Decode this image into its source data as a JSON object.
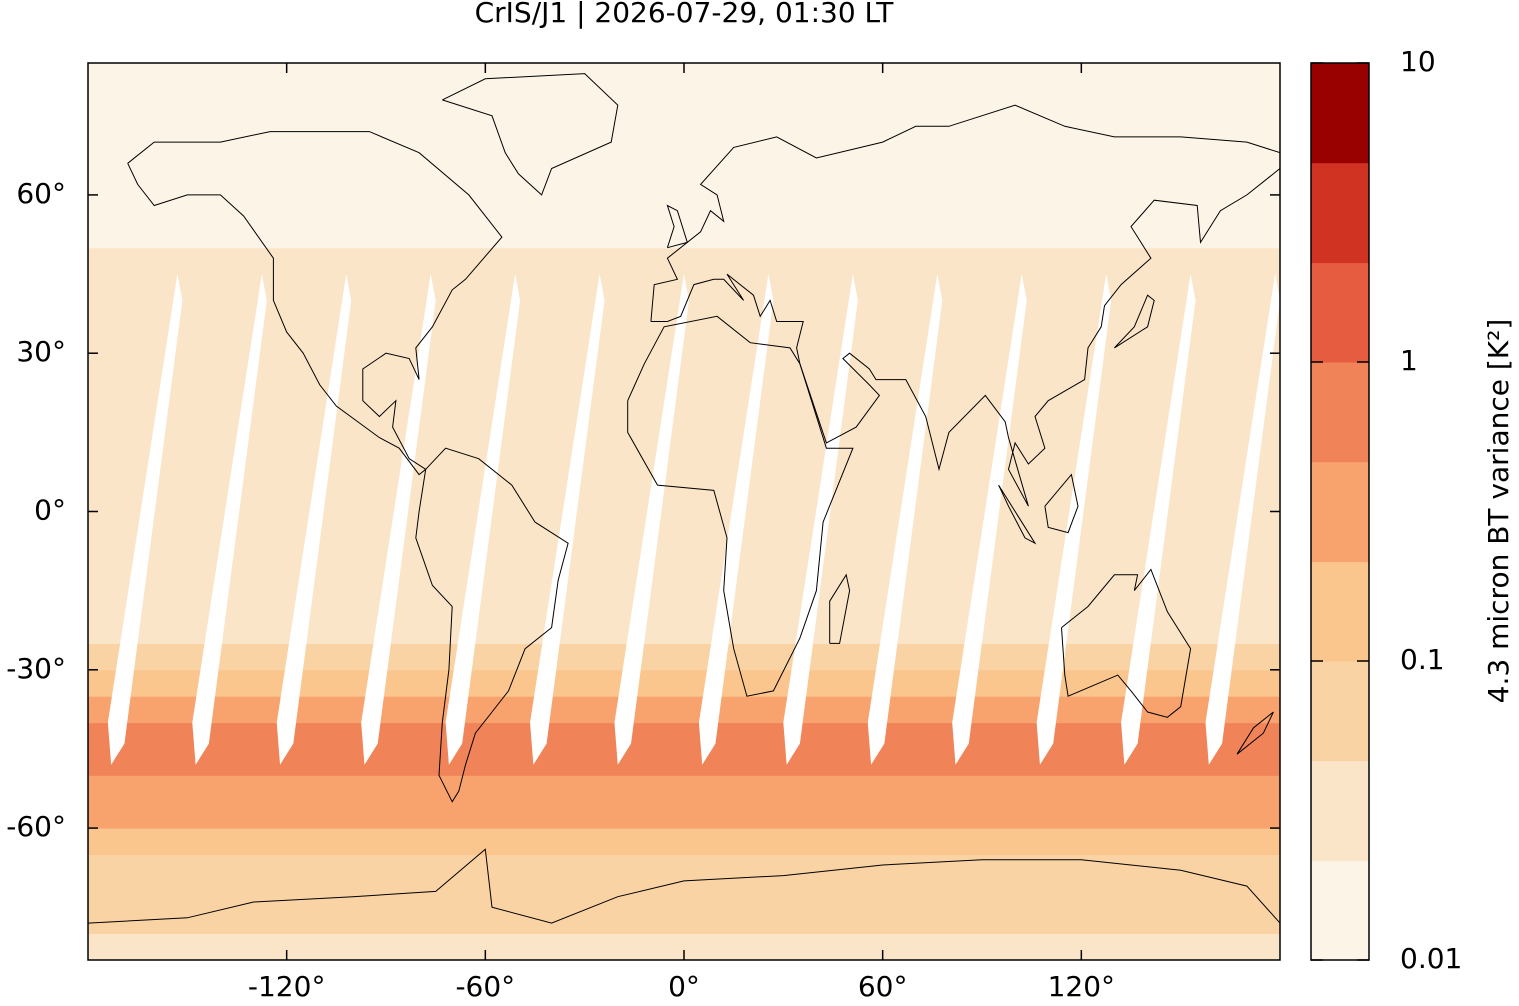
{
  "chart_data": {
    "type": "map",
    "title": "CrIS/J1 | 2026-07-29, 01:30 LT",
    "xlim": [
      -180,
      180
    ],
    "ylim": [
      -85,
      85
    ],
    "xticks": [
      {
        "value": -120,
        "label": "-120°"
      },
      {
        "value": -60,
        "label": "-60°"
      },
      {
        "value": 0,
        "label": "0°"
      },
      {
        "value": 60,
        "label": "60°"
      },
      {
        "value": 120,
        "label": "120°"
      }
    ],
    "yticks": [
      {
        "value": -60,
        "label": "-60°"
      },
      {
        "value": -30,
        "label": "-30°"
      },
      {
        "value": 0,
        "label": "0°"
      },
      {
        "value": 30,
        "label": "30°"
      },
      {
        "value": 60,
        "label": "60°"
      }
    ],
    "lat_edges": [
      -85,
      -80,
      -75,
      -70,
      -65,
      -60,
      -55,
      -50,
      -45,
      -40,
      -35,
      -30,
      -25,
      -20,
      -15,
      -10,
      -5,
      0,
      5,
      10,
      15,
      20,
      25,
      30,
      35,
      40,
      45,
      50,
      55,
      60,
      65,
      70,
      75,
      80,
      85
    ],
    "values": [
      0.04,
      0.05,
      0.06,
      0.08,
      0.15,
      0.25,
      0.4,
      0.6,
      0.7,
      0.4,
      0.15,
      0.06,
      0.04,
      0.03,
      0.025,
      0.025,
      0.03,
      0.03,
      0.025,
      0.03,
      0.03,
      0.035,
      0.04,
      0.04,
      0.035,
      0.03,
      0.025,
      0.02,
      0.018,
      0.015,
      0.012,
      0.012,
      0.012,
      0.012
    ],
    "colorbar": {
      "label": "4.3 micron BT variance [K²]",
      "scale": "log",
      "lim": [
        0.01,
        10
      ],
      "ticks": [
        0.01,
        0.1,
        1,
        10
      ],
      "levels": [
        0.01,
        0.0215,
        0.0464,
        0.1,
        0.215,
        0.464,
        1,
        2.15,
        4.64,
        10
      ],
      "colors": [
        "#fdf4e8",
        "#fbe5c9",
        "#f9d3a4",
        "#fbc58e",
        "#f8a26e",
        "#f08458",
        "#e65c40",
        "#d13322",
        "#990000"
      ]
    }
  }
}
